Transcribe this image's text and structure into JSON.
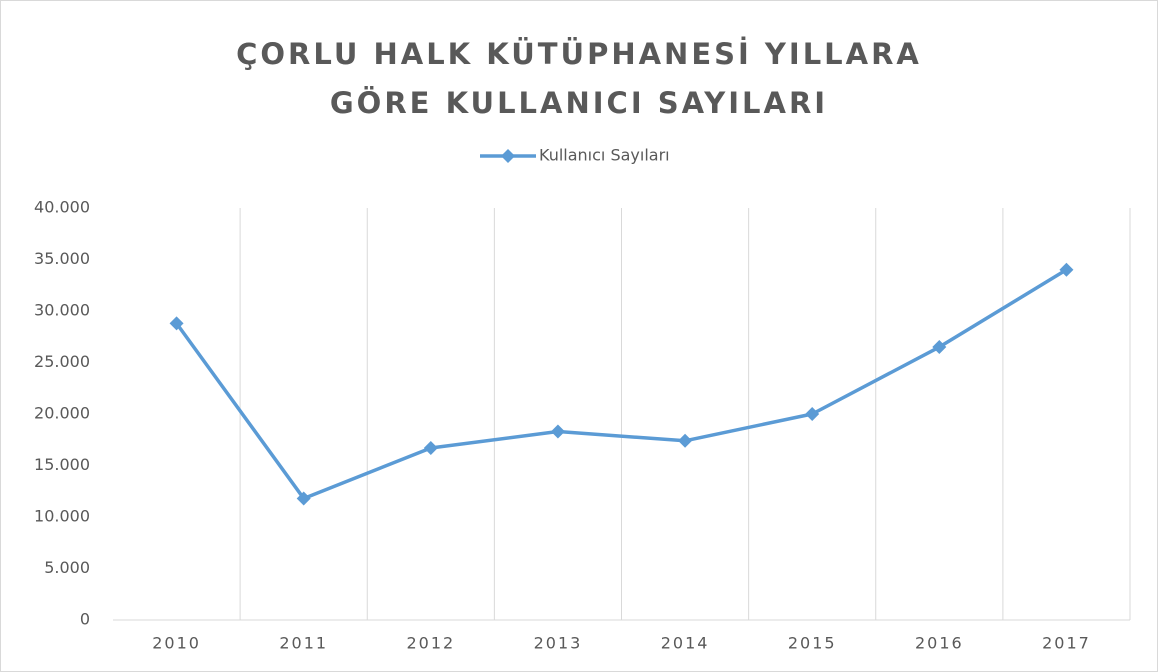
{
  "chart_data": {
    "type": "line",
    "title": "ÇORLU HALK KÜTÜPHANESİ YILLARA GÖRE KULLANICI SAYILARI",
    "categories": [
      "2010",
      "2011",
      "2012",
      "2013",
      "2014",
      "2015",
      "2016",
      "2017"
    ],
    "series": [
      {
        "name": "Kullanıcı Sayıları",
        "color": "#5b9bd5",
        "values": [
          28800,
          11800,
          16700,
          18300,
          17400,
          20000,
          26500,
          34000
        ]
      }
    ],
    "ylim": [
      0,
      40000
    ],
    "yticks": [
      0,
      {
        "value": 5000,
        "label": "5.000"
      },
      {
        "value": 10000,
        "label": "10.000"
      },
      {
        "value": 15000,
        "label": "15.000"
      },
      {
        "value": 20000,
        "label": "20.000"
      },
      {
        "value": 25000,
        "label": "25.000"
      },
      {
        "value": 30000,
        "label": "30.000"
      },
      {
        "value": 35000,
        "label": "35.000"
      },
      {
        "value": 40000,
        "label": "40.000"
      }
    ],
    "legend": "top"
  }
}
